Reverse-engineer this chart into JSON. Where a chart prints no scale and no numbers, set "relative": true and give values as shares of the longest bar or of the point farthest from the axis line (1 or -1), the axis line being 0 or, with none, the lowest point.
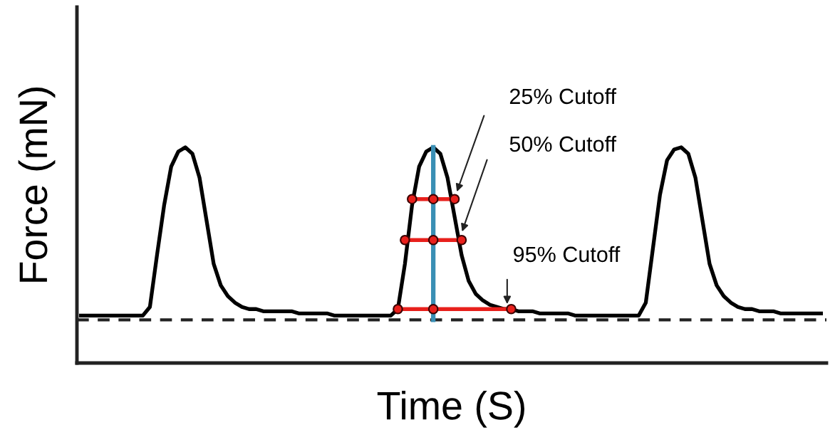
{
  "chart_data": {
    "type": "line",
    "relative": true,
    "xlabel": "Time (S)",
    "ylabel": "Force (mN)",
    "categories": [
      null,
      null,
      null,
      null,
      null,
      null,
      null,
      null,
      null,
      null,
      null,
      null,
      null,
      null,
      null,
      null,
      null,
      null,
      null,
      null,
      null,
      null,
      null,
      null,
      null,
      null,
      null,
      null,
      null,
      null,
      null,
      null,
      null,
      null,
      null,
      null,
      null,
      null,
      null,
      null,
      null,
      null,
      null,
      null,
      null,
      null,
      null,
      null,
      null,
      null,
      null,
      null,
      null,
      null,
      null,
      null,
      null,
      null,
      null,
      null,
      null,
      null,
      null,
      null,
      null,
      null,
      null,
      null,
      null,
      null,
      null,
      null,
      null,
      null,
      null,
      null,
      null,
      null,
      null,
      null,
      null,
      null,
      null,
      null,
      null,
      null,
      null,
      null,
      null,
      null,
      null,
      null,
      null,
      null,
      null,
      null,
      null,
      null,
      null,
      null,
      null,
      null,
      null,
      null,
      null,
      null
    ],
    "series": [
      {
        "color": "#000000",
        "marker": "none",
        "values": [
          0.22,
          0.22,
          0.22,
          0.22,
          0.22,
          0.22,
          0.22,
          0.22,
          0.22,
          0.22,
          0.26,
          0.5,
          0.73,
          0.91,
          0.98,
          1,
          0.97,
          0.86,
          0.66,
          0.46,
          0.36,
          0.31,
          0.28,
          0.26,
          0.25,
          0.25,
          0.24,
          0.24,
          0.24,
          0.24,
          0.24,
          0.23,
          0.23,
          0.23,
          0.23,
          0.23,
          0.22,
          0.22,
          0.22,
          0.22,
          0.22,
          0.22,
          0.22,
          0.22,
          0.22,
          0.25,
          0.46,
          0.73,
          0.91,
          0.98,
          1,
          0.97,
          0.86,
          0.68,
          0.5,
          0.38,
          0.32,
          0.29,
          0.27,
          0.26,
          0.25,
          0.25,
          0.24,
          0.24,
          0.24,
          0.23,
          0.23,
          0.23,
          0.23,
          0.23,
          0.22,
          0.22,
          0.22,
          0.22,
          0.22,
          0.22,
          0.22,
          0.22,
          0.22,
          0.22,
          0.28,
          0.53,
          0.78,
          0.94,
          0.99,
          1,
          0.97,
          0.86,
          0.66,
          0.46,
          0.36,
          0.31,
          0.28,
          0.26,
          0.25,
          0.25,
          0.24,
          0.24,
          0.24,
          0.23,
          0.23,
          0.23,
          0.23,
          0.23,
          0.23,
          0.23
        ]
      },
      {
        "color": "#e8201c",
        "marker": "circle",
        "values": [
          null,
          null,
          null,
          null,
          null,
          null,
          null,
          null,
          null,
          null,
          null,
          null,
          null,
          null,
          null,
          null,
          null,
          null,
          null,
          null,
          null,
          null,
          null,
          null,
          null,
          null,
          null,
          null,
          null,
          null,
          null,
          null,
          null,
          null,
          null,
          null,
          null,
          null,
          null,
          null,
          null,
          null,
          null,
          null,
          null,
          null,
          null,
          0.76,
          null,
          null,
          0.76,
          null,
          null,
          0.76,
          null,
          null,
          null,
          null,
          null,
          null,
          null,
          null,
          null,
          null,
          null,
          null,
          null,
          null,
          null,
          null,
          null,
          null,
          null,
          null,
          null,
          null,
          null,
          null,
          null,
          null,
          null,
          null,
          null,
          null,
          null,
          null,
          null,
          null,
          null,
          null,
          null,
          null,
          null,
          null,
          null,
          null,
          null,
          null,
          null,
          null,
          null,
          null,
          null,
          null,
          null,
          null
        ]
      },
      {
        "color": "#e8201c",
        "marker": "circle",
        "values": [
          null,
          null,
          null,
          null,
          null,
          null,
          null,
          null,
          null,
          null,
          null,
          null,
          null,
          null,
          null,
          null,
          null,
          null,
          null,
          null,
          null,
          null,
          null,
          null,
          null,
          null,
          null,
          null,
          null,
          null,
          null,
          null,
          null,
          null,
          null,
          null,
          null,
          null,
          null,
          null,
          null,
          null,
          null,
          null,
          null,
          null,
          0.57,
          null,
          null,
          null,
          0.57,
          null,
          null,
          null,
          0.57,
          null,
          null,
          null,
          null,
          null,
          null,
          null,
          null,
          null,
          null,
          null,
          null,
          null,
          null,
          null,
          null,
          null,
          null,
          null,
          null,
          null,
          null,
          null,
          null,
          null,
          null,
          null,
          null,
          null,
          null,
          null,
          null,
          null,
          null,
          null,
          null,
          null,
          null,
          null,
          null,
          null,
          null,
          null,
          null,
          null,
          null,
          null,
          null,
          null,
          null,
          null
        ]
      },
      {
        "color": "#e8201c",
        "marker": "circle",
        "values": [
          null,
          null,
          null,
          null,
          null,
          null,
          null,
          null,
          null,
          null,
          null,
          null,
          null,
          null,
          null,
          null,
          null,
          null,
          null,
          null,
          null,
          null,
          null,
          null,
          null,
          null,
          null,
          null,
          null,
          null,
          null,
          null,
          null,
          null,
          null,
          null,
          null,
          null,
          null,
          null,
          null,
          null,
          null,
          null,
          null,
          0.25,
          null,
          null,
          null,
          null,
          0.25,
          null,
          null,
          null,
          null,
          null,
          null,
          null,
          null,
          null,
          null,
          0.25,
          null,
          null,
          null,
          null,
          null,
          null,
          null,
          null,
          null,
          null,
          null,
          null,
          null,
          null,
          null,
          null,
          null,
          null,
          null,
          null,
          null,
          null,
          null,
          null,
          null,
          null,
          null,
          null,
          null,
          null,
          null,
          null,
          null,
          null,
          null,
          null,
          null,
          null,
          null,
          null,
          null,
          null,
          null,
          null
        ]
      }
    ],
    "ref_lines": [
      {
        "axis": "y",
        "value": 0.2,
        "color": "#222222",
        "line_style": "dashed"
      }
    ],
    "annotations": [
      "25% Cutoff",
      "50% Cutoff",
      "95% Cutoff"
    ]
  }
}
